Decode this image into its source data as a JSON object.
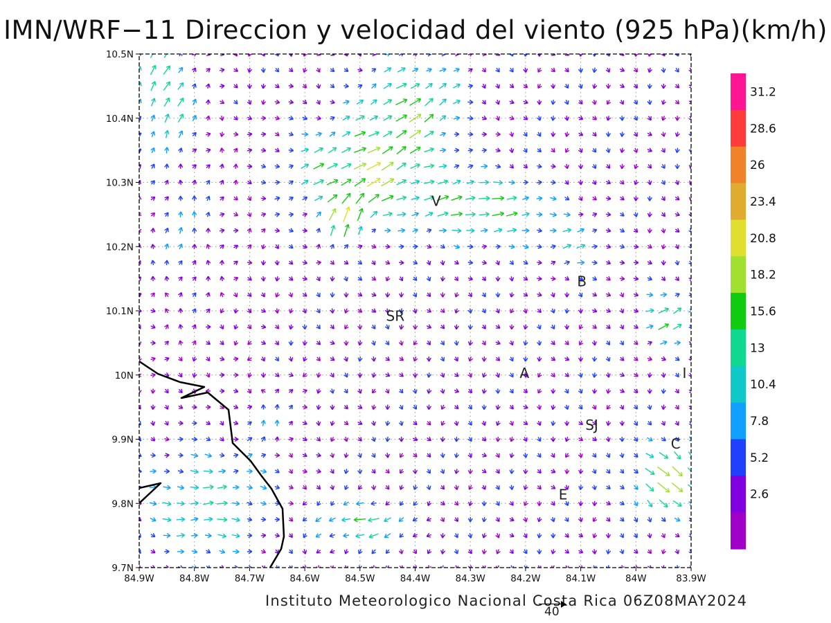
{
  "title": "IMN/WRF−11 Direccion y velocidad del viento (925 hPa)(km/h)",
  "footer": "Instituto Meteorologico Nacional Costa Rica 06Z08MAY2024",
  "vector_scale": {
    "label": "40",
    "value": 40
  },
  "map": {
    "lon_range": [
      -84.9,
      -83.9
    ],
    "lat_range": [
      9.7,
      10.5
    ],
    "x_ticks": [
      "84.9W",
      "84.8W",
      "84.7W",
      "84.6W",
      "84.5W",
      "84.4W",
      "84.3W",
      "84.2W",
      "84.1W",
      "84W",
      "83.9W"
    ],
    "y_ticks": [
      "9.7N",
      "9.8N",
      "9.9N",
      "10N",
      "10.1N",
      "10.2N",
      "10.3N",
      "10.4N",
      "10.5N"
    ],
    "grid": "dotted",
    "places": [
      {
        "label": "V",
        "lon": -84.362,
        "lat": 10.271
      },
      {
        "label": "B",
        "lon": -84.098,
        "lat": 10.146
      },
      {
        "label": "SR",
        "lon": -84.436,
        "lat": 10.092
      },
      {
        "label": "A",
        "lon": -84.202,
        "lat": 10.003
      },
      {
        "label": "I",
        "lon": -83.912,
        "lat": 10.003
      },
      {
        "label": "SJ",
        "lon": -84.08,
        "lat": 9.922
      },
      {
        "label": "C",
        "lon": -83.928,
        "lat": 9.893
      },
      {
        "label": "E",
        "lon": -84.132,
        "lat": 9.814
      }
    ]
  },
  "colorbar": {
    "labels": [
      "31.2",
      "28.6",
      "26",
      "23.4",
      "20.8",
      "18.2",
      "15.6",
      "13",
      "10.4",
      "7.8",
      "5.2",
      "2.6"
    ],
    "colors": [
      "#ff1493",
      "#ff3b3b",
      "#f0822a",
      "#e0ac30",
      "#e0df30",
      "#a0e030",
      "#10cc10",
      "#10d890",
      "#10c8c8",
      "#10a0ff",
      "#2040ff",
      "#8000e0",
      "#a000c8"
    ]
  }
}
